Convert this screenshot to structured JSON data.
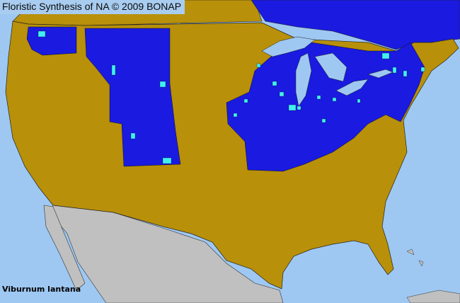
{
  "header": {
    "title": "Floristic Synthesis of NA © 2009 BONAP"
  },
  "map": {
    "species": "Viburnum lantana",
    "colors": {
      "ocean": "#9ec8f2",
      "not_present": "#b8900a",
      "present_in_state": "#1a1ae0",
      "present_in_county": "#40f0f0",
      "outside_range": "#c0c0c0",
      "borders": "#1a1a1a"
    }
  }
}
